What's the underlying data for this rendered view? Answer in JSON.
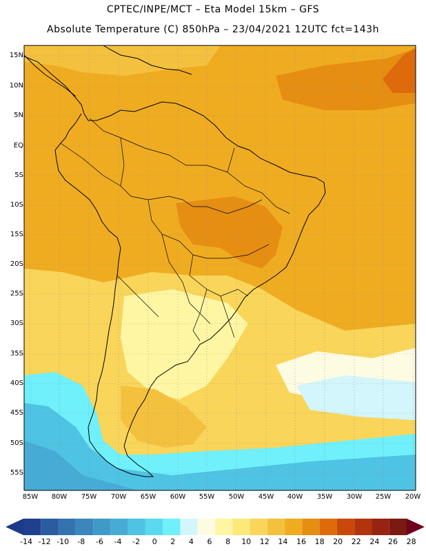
{
  "title": {
    "line1": "CPTEC/INPE/MCT –  Eta Model 15km – GFS",
    "line2": "Absolute Temperature (C) 850hPa – 23/04/2021 12UTC fct=143h"
  },
  "map": {
    "lat_labels": [
      "15N",
      "10N",
      "5N",
      "EQ",
      "5S",
      "10S",
      "15S",
      "20S",
      "25S",
      "30S",
      "35S",
      "40S",
      "45S",
      "50S",
      "55S"
    ],
    "lon_labels": [
      "85W",
      "80W",
      "75W",
      "70W",
      "65W",
      "60W",
      "55W",
      "50W",
      "45W",
      "40W",
      "35W",
      "30W",
      "25W",
      "20W"
    ]
  },
  "colorbar": {
    "labels": [
      "-14",
      "-12",
      "-10",
      "-8",
      "-6",
      "-4",
      "-2",
      "0",
      "2",
      "4",
      "6",
      "8",
      "10",
      "12",
      "14",
      "16",
      "18",
      "20",
      "22",
      "24",
      "26",
      "28"
    ],
    "colors": [
      "#1f3f8f",
      "#2a5da0",
      "#3273b0",
      "#3a86bd",
      "#3f9ac9",
      "#46acd6",
      "#4fc3e3",
      "#5ad9ef",
      "#6ff0fb",
      "#d2f6fb",
      "#fdfbe1",
      "#fef6a3",
      "#fce97a",
      "#f9d55a",
      "#f4c13f",
      "#efac21",
      "#e68e12",
      "#de6a0b",
      "#c9490b",
      "#b2340d",
      "#972410",
      "#7a1a10"
    ],
    "under_color": "#1b3a88",
    "over_color": "#700020"
  }
}
